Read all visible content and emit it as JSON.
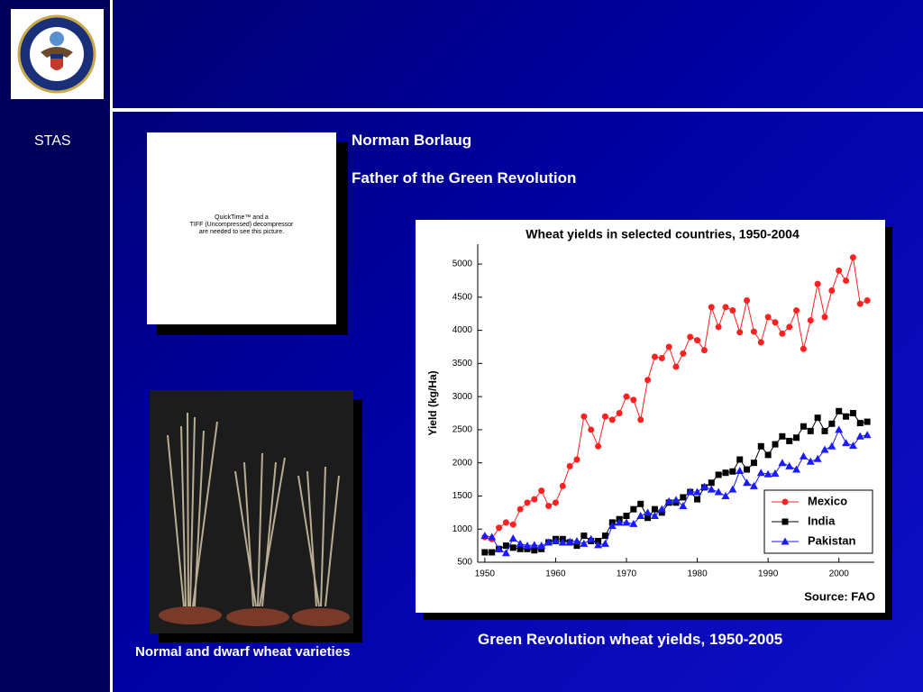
{
  "section": "STAS",
  "heading": "Norman Borlaug",
  "subheading": "Father of the Green Revolution",
  "placeholder": [
    "QuickTime™ and a",
    "TIFF (Uncompressed) decompressor",
    "are needed to see this picture."
  ],
  "photo_caption": "Normal and dwarf wheat varieties",
  "chart_caption": "Green Revolution wheat yields, 1950-2005",
  "chart_data": {
    "type": "line",
    "title": "Wheat yields in selected countries, 1950-2004",
    "y_label": "Yield (kg/Ha)",
    "source": "Source:  FAO",
    "x": [
      1950,
      1951,
      1952,
      1953,
      1954,
      1955,
      1956,
      1957,
      1958,
      1959,
      1960,
      1961,
      1962,
      1963,
      1964,
      1965,
      1966,
      1967,
      1968,
      1969,
      1970,
      1971,
      1972,
      1973,
      1974,
      1975,
      1976,
      1977,
      1978,
      1979,
      1980,
      1981,
      1982,
      1983,
      1984,
      1985,
      1986,
      1987,
      1988,
      1989,
      1990,
      1991,
      1992,
      1993,
      1994,
      1995,
      1996,
      1997,
      1998,
      1999,
      2000,
      2001,
      2002,
      2003,
      2004
    ],
    "series": [
      {
        "name": "Mexico",
        "color": "#ff2020",
        "marker": "circle",
        "values": [
          880,
          850,
          1020,
          1100,
          1070,
          1300,
          1400,
          1450,
          1580,
          1350,
          1400,
          1650,
          1950,
          2050,
          2700,
          2500,
          2250,
          2700,
          2650,
          2750,
          3000,
          2950,
          2650,
          3250,
          3600,
          3580,
          3750,
          3450,
          3650,
          3900,
          3850,
          3700,
          4350,
          4050,
          4350,
          4300,
          3970,
          4450,
          3980,
          3820,
          4200,
          4120,
          3950,
          4050,
          4300,
          3720,
          4150,
          4700,
          4200,
          4600,
          4900,
          4750,
          5100,
          4400,
          4450
        ]
      },
      {
        "name": "India",
        "color": "#000000",
        "marker": "square",
        "values": [
          650,
          650,
          700,
          750,
          720,
          700,
          700,
          680,
          700,
          800,
          850,
          850,
          800,
          750,
          900,
          820,
          820,
          900,
          1100,
          1150,
          1200,
          1300,
          1380,
          1170,
          1300,
          1250,
          1400,
          1400,
          1480,
          1560,
          1450,
          1630,
          1700,
          1820,
          1850,
          1870,
          2050,
          1900,
          2000,
          2250,
          2120,
          2280,
          2400,
          2330,
          2380,
          2550,
          2480,
          2680,
          2480,
          2590,
          2780,
          2700,
          2750,
          2600,
          2620
        ]
      },
      {
        "name": "Pakistan",
        "color": "#1a1aff",
        "marker": "triangle",
        "values": [
          900,
          880,
          700,
          640,
          860,
          780,
          750,
          760,
          750,
          800,
          820,
          800,
          810,
          820,
          780,
          850,
          760,
          780,
          1050,
          1100,
          1100,
          1080,
          1200,
          1250,
          1200,
          1300,
          1420,
          1440,
          1350,
          1560,
          1560,
          1640,
          1600,
          1560,
          1500,
          1600,
          1880,
          1700,
          1650,
          1850,
          1830,
          1840,
          2000,
          1950,
          1900,
          2100,
          2020,
          2060,
          2200,
          2250,
          2500,
          2300,
          2260,
          2400,
          2420
        ]
      }
    ],
    "xlim": [
      1949,
      2005
    ],
    "xticks": [
      1950,
      1960,
      1970,
      1980,
      1990,
      2000
    ],
    "ylim": [
      500,
      5300
    ],
    "yticks": [
      500,
      1000,
      1500,
      2000,
      2500,
      3000,
      3500,
      4000,
      4500,
      5000
    ],
    "grid": false,
    "legend": "lower right"
  }
}
